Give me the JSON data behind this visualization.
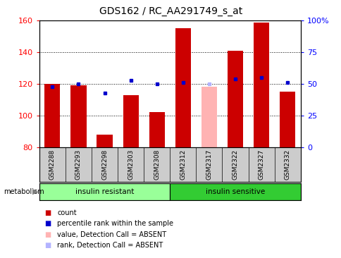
{
  "title": "GDS162 / RC_AA291749_s_at",
  "samples": [
    "GSM2288",
    "GSM2293",
    "GSM2298",
    "GSM2303",
    "GSM2308",
    "GSM2312",
    "GSM2317",
    "GSM2322",
    "GSM2327",
    "GSM2332"
  ],
  "bar_values": [
    120,
    119,
    88,
    113,
    102,
    155,
    null,
    141,
    159,
    115
  ],
  "absent_bar_values": [
    null,
    null,
    null,
    null,
    null,
    null,
    118,
    null,
    null,
    null
  ],
  "rank_values": [
    48,
    50,
    43,
    53,
    50,
    51,
    null,
    54,
    55,
    51
  ],
  "absent_rank_values": [
    null,
    null,
    null,
    null,
    null,
    null,
    50,
    null,
    null,
    null
  ],
  "ylim_left": [
    80,
    160
  ],
  "ylim_right": [
    0,
    100
  ],
  "yticks_left": [
    80,
    100,
    120,
    140,
    160
  ],
  "yticks_right": [
    0,
    25,
    50,
    75,
    100
  ],
  "ytick_labels_right": [
    "0",
    "25",
    "50",
    "75",
    "100%"
  ],
  "bar_color": "#cc0000",
  "absent_bar_color": "#ffb3b3",
  "rank_color": "#0000cc",
  "absent_rank_color": "#b3b3ff",
  "group1_label": "insulin resistant",
  "group2_label": "insulin sensitive",
  "group1_color": "#99ff99",
  "group2_color": "#33cc33",
  "metabolism_label": "metabolism",
  "legend_items": [
    {
      "label": "count",
      "color": "#cc0000"
    },
    {
      "label": "percentile rank within the sample",
      "color": "#0000cc"
    },
    {
      "label": "value, Detection Call = ABSENT",
      "color": "#ffb3b3"
    },
    {
      "label": "rank, Detection Call = ABSENT",
      "color": "#b3b3ff"
    }
  ],
  "n_group1": 5,
  "n_group2": 5
}
